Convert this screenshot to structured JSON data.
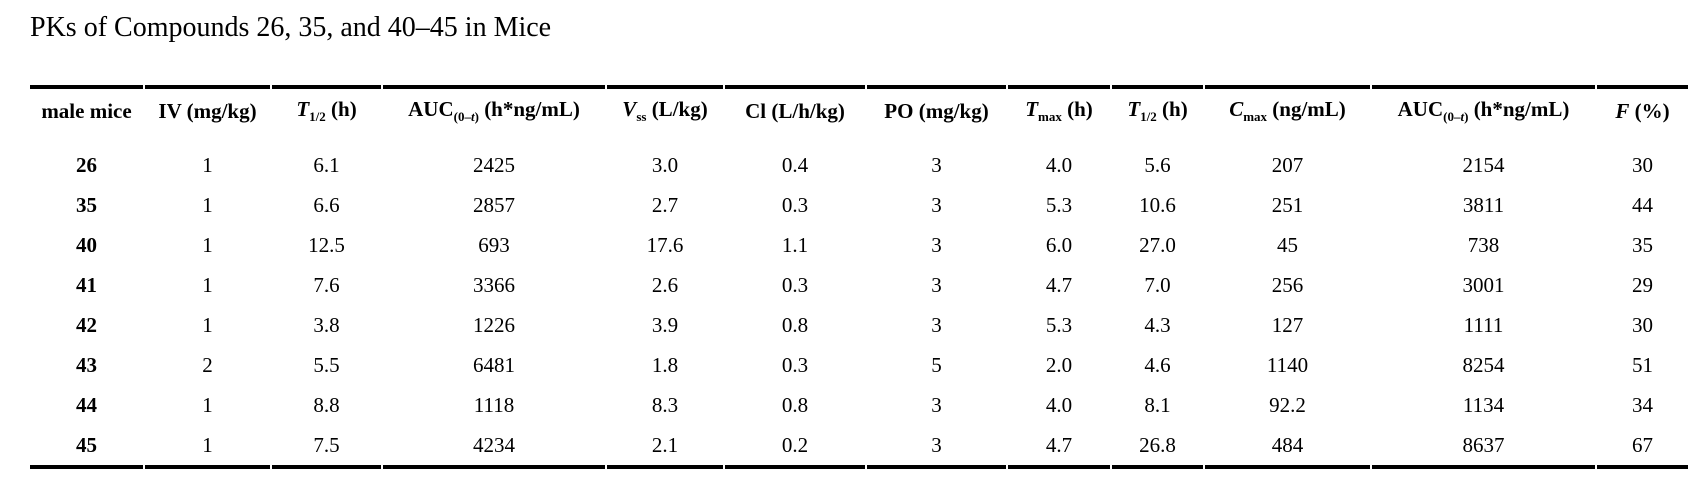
{
  "title": "PKs of Compounds 26, 35, and 40–45 in Mice",
  "table": {
    "headers": [
      [
        {
          "t": "male mice",
          "s": "b"
        }
      ],
      [
        {
          "t": "IV (mg/kg)",
          "s": "b"
        }
      ],
      [
        {
          "t": "T",
          "s": "bi"
        },
        {
          "t": "1/2",
          "s": "sub"
        },
        {
          "t": " (h)",
          "s": "b"
        }
      ],
      [
        {
          "t": "AUC",
          "s": "b"
        },
        {
          "t": "(0–",
          "s": "sub"
        },
        {
          "t": "t",
          "s": "subi"
        },
        {
          "t": ")",
          "s": "sub"
        },
        {
          "t": " (h*ng/mL)",
          "s": "b"
        }
      ],
      [
        {
          "t": "V",
          "s": "bi"
        },
        {
          "t": "ss",
          "s": "sub"
        },
        {
          "t": " (L/kg)",
          "s": "b"
        }
      ],
      [
        {
          "t": "Cl (L/h/kg)",
          "s": "b"
        }
      ],
      [
        {
          "t": "PO (mg/kg)",
          "s": "b"
        }
      ],
      [
        {
          "t": "T",
          "s": "bi"
        },
        {
          "t": "max",
          "s": "sub"
        },
        {
          "t": " (h)",
          "s": "b"
        }
      ],
      [
        {
          "t": "T",
          "s": "bi"
        },
        {
          "t": "1/2",
          "s": "sub"
        },
        {
          "t": " (h)",
          "s": "b"
        }
      ],
      [
        {
          "t": "C",
          "s": "bi"
        },
        {
          "t": "max",
          "s": "sub"
        },
        {
          "t": " (ng/mL)",
          "s": "b"
        }
      ],
      [
        {
          "t": "AUC",
          "s": "b"
        },
        {
          "t": "(0–",
          "s": "sub"
        },
        {
          "t": "t",
          "s": "subi"
        },
        {
          "t": ")",
          "s": "sub"
        },
        {
          "t": " (h*ng/mL)",
          "s": "b"
        }
      ],
      [
        {
          "t": "F",
          "s": "bi"
        },
        {
          "t": " (%)",
          "s": "b"
        }
      ]
    ],
    "rows": [
      [
        "26",
        "1",
        "6.1",
        "2425",
        "3.0",
        "0.4",
        "3",
        "4.0",
        "5.6",
        "207",
        "2154",
        "30"
      ],
      [
        "35",
        "1",
        "6.6",
        "2857",
        "2.7",
        "0.3",
        "3",
        "5.3",
        "10.6",
        "251",
        "3811",
        "44"
      ],
      [
        "40",
        "1",
        "12.5",
        "693",
        "17.6",
        "1.1",
        "3",
        "6.0",
        "27.0",
        "45",
        "738",
        "35"
      ],
      [
        "41",
        "1",
        "7.6",
        "3366",
        "2.6",
        "0.3",
        "3",
        "4.7",
        "7.0",
        "256",
        "3001",
        "29"
      ],
      [
        "42",
        "1",
        "3.8",
        "1226",
        "3.9",
        "0.8",
        "3",
        "5.3",
        "4.3",
        "127",
        "1111",
        "30"
      ],
      [
        "43",
        "2",
        "5.5",
        "6481",
        "1.8",
        "0.3",
        "5",
        "2.0",
        "4.6",
        "1140",
        "8254",
        "51"
      ],
      [
        "44",
        "1",
        "8.8",
        "1118",
        "8.3",
        "0.8",
        "3",
        "4.0",
        "8.1",
        "92.2",
        "1134",
        "34"
      ],
      [
        "45",
        "1",
        "7.5",
        "4234",
        "2.1",
        "0.2",
        "3",
        "4.7",
        "26.8",
        "484",
        "8637",
        "67"
      ]
    ],
    "colors": {
      "text": "#000000",
      "rule": "#000000",
      "background": "#ffffff"
    }
  }
}
